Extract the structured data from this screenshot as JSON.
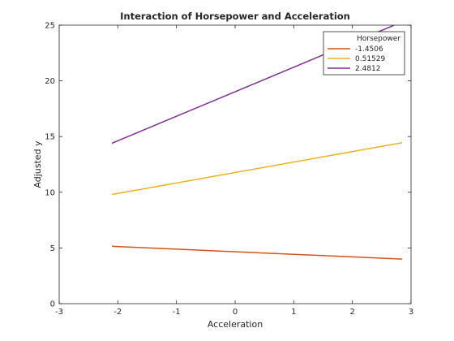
{
  "chart_data": {
    "type": "line",
    "title": "Interaction of Horsepower and Acceleration",
    "xlabel": "Acceleration",
    "ylabel": "Adjusted y",
    "xlim": [
      -3,
      3
    ],
    "ylim": [
      0,
      25
    ],
    "xticks": [
      -3,
      -2,
      -1,
      0,
      1,
      2,
      3
    ],
    "yticks": [
      0,
      5,
      10,
      15,
      20,
      25
    ],
    "grid": false,
    "legend_title": "Horsepower",
    "legend_position": "top-right",
    "series": [
      {
        "name": "-1.4506",
        "color": "#D95319",
        "x": [
          -2.1,
          2.85
        ],
        "y": [
          5.15,
          4.0
        ]
      },
      {
        "name": "0.51529",
        "color": "#EDB120",
        "x": [
          -2.1,
          2.85
        ],
        "y": [
          9.8,
          14.45
        ]
      },
      {
        "name": "2.4812",
        "color": "#7E2F8E",
        "x": [
          -2.1,
          2.85
        ],
        "y": [
          14.4,
          25.3
        ]
      }
    ]
  }
}
